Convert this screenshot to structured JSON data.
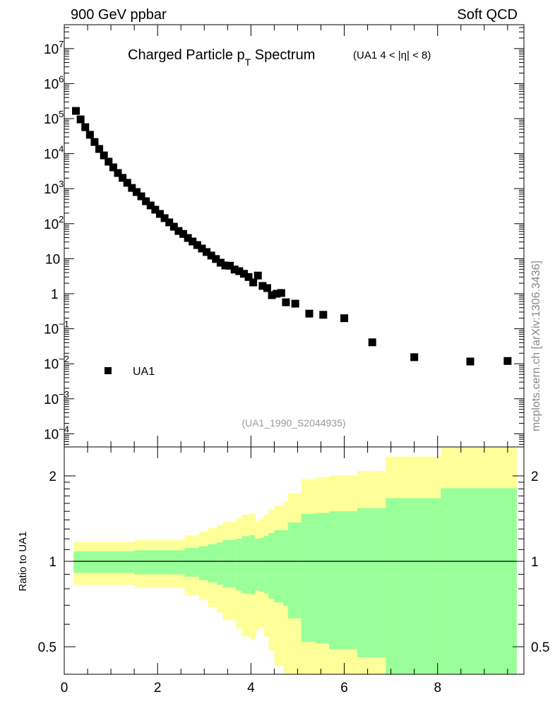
{
  "header": {
    "left": "900 GeV ppbar",
    "right": "Soft QCD"
  },
  "side_label": "mcplots.cern.ch [arXiv:1306.3436]",
  "chart_data": [
    {
      "type": "scatter",
      "title": "Charged Particle p",
      "title_sub": "T",
      "title_tail": " Spectrum",
      "title_extra": "(UA1   4 < |η| < 8)",
      "analysis_label": "(UA1_1990_S2044935)",
      "legend": [
        {
          "name": "UA1",
          "marker": "square",
          "color": "#000000"
        }
      ],
      "legend_position": "lower-left",
      "xlim": [
        0,
        9.85
      ],
      "ylim": [
        4e-05,
        30000000
      ],
      "yscale": "log",
      "ytick_labels": [
        {
          "v": 10000000,
          "base": "10",
          "exp": "7"
        },
        {
          "v": 1000000,
          "base": "10",
          "exp": "6"
        },
        {
          "v": 100000,
          "base": "10",
          "exp": "5"
        },
        {
          "v": 10000,
          "base": "10",
          "exp": "4"
        },
        {
          "v": 1000,
          "base": "10",
          "exp": "3"
        },
        {
          "v": 100,
          "base": "10",
          "exp": "2"
        },
        {
          "v": 10,
          "base": "10",
          "exp": ""
        },
        {
          "v": 1,
          "base": "1",
          "exp": ""
        },
        {
          "v": 0.1,
          "base": "10",
          "exp": "−1"
        },
        {
          "v": 0.01,
          "base": "10",
          "exp": "−2"
        },
        {
          "v": 0.001,
          "base": "10",
          "exp": "−3"
        },
        {
          "v": 0.0001,
          "base": "10",
          "exp": "−4"
        }
      ],
      "series": [
        {
          "name": "UA1",
          "x": [
            0.25,
            0.35,
            0.45,
            0.55,
            0.65,
            0.75,
            0.85,
            0.95,
            1.05,
            1.15,
            1.25,
            1.35,
            1.45,
            1.55,
            1.65,
            1.75,
            1.85,
            1.95,
            2.05,
            2.15,
            2.25,
            2.35,
            2.45,
            2.55,
            2.65,
            2.75,
            2.85,
            2.95,
            3.05,
            3.15,
            3.25,
            3.35,
            3.45,
            3.55,
            3.65,
            3.75,
            3.85,
            3.95,
            4.05,
            4.15,
            4.25,
            4.35,
            4.45,
            4.55,
            4.65,
            4.75,
            4.95,
            5.25,
            5.55,
            6.0,
            6.6,
            7.5,
            8.7,
            9.5
          ],
          "y": [
            166000,
            95000,
            57000,
            34500,
            21500,
            13600,
            8900,
            5900,
            4060,
            2800,
            2030,
            1470,
            1050,
            800,
            605,
            437,
            332,
            251,
            190,
            144,
            109,
            82,
            62,
            51,
            39,
            31,
            24.5,
            19.5,
            15.5,
            12.3,
            9.8,
            7.7,
            6.4,
            6.3,
            4.9,
            4.4,
            3.7,
            3.0,
            2.1,
            3.3,
            1.67,
            1.45,
            0.91,
            1.0,
            1.05,
            0.57,
            0.52,
            0.27,
            0.25,
            0.2,
            0.041,
            0.0154,
            0.0116,
            0.012
          ]
        }
      ]
    },
    {
      "type": "area",
      "ylabel": "Ratio to UA1",
      "yscale": "log",
      "ylim": [
        0.4,
        2.53
      ],
      "ytick_labels": [
        {
          "v": 2,
          "label": "2"
        },
        {
          "v": 1,
          "label": "1"
        },
        {
          "v": 0.5,
          "label": "0.5"
        }
      ],
      "xlim": [
        0,
        9.85
      ],
      "xtick_labels": [
        {
          "v": 0,
          "label": "0"
        },
        {
          "v": 2,
          "label": "2"
        },
        {
          "v": 4,
          "label": "4"
        },
        {
          "v": 6,
          "label": "6"
        },
        {
          "v": 8,
          "label": "8"
        }
      ],
      "band_colors": {
        "inner": "#99ff99",
        "outer": "#ffff99"
      },
      "bins": {
        "edges": [
          0.2,
          1.51,
          2.58,
          2.89,
          3.08,
          3.27,
          3.4,
          3.68,
          3.81,
          3.99,
          4.09,
          4.18,
          4.28,
          4.38,
          4.5,
          4.69,
          4.79,
          5.08,
          5.38,
          5.68,
          6.28,
          6.89,
          8.07,
          9.69
        ],
        "inner_up": [
          1.085,
          1.094,
          1.115,
          1.13,
          1.15,
          1.165,
          1.188,
          1.2,
          1.227,
          1.236,
          1.2,
          1.21,
          1.23,
          1.257,
          1.287,
          1.287,
          1.37,
          1.47,
          1.48,
          1.5,
          1.54,
          1.67,
          1.81
        ],
        "inner_down": [
          0.91,
          0.9,
          0.883,
          0.858,
          0.842,
          0.826,
          0.808,
          0.79,
          0.77,
          0.765,
          0.79,
          0.78,
          0.77,
          0.737,
          0.716,
          0.696,
          0.63,
          0.52,
          0.513,
          0.49,
          0.459,
          0.3,
          0.3
        ],
        "outer_up": [
          1.17,
          1.188,
          1.234,
          1.274,
          1.31,
          1.345,
          1.376,
          1.415,
          1.46,
          1.47,
          1.39,
          1.415,
          1.46,
          1.52,
          1.57,
          1.62,
          1.74,
          1.95,
          1.98,
          2.01,
          2.08,
          2.34,
          2.6
        ],
        "outer_down": [
          0.825,
          0.806,
          0.76,
          0.73,
          0.69,
          0.66,
          0.62,
          0.58,
          0.543,
          0.53,
          0.57,
          0.586,
          0.543,
          0.485,
          0.43,
          0.3,
          0.3,
          0.3,
          0.3,
          0.3,
          0.3,
          0.3,
          0.3
        ]
      },
      "reference_line": 1
    }
  ]
}
